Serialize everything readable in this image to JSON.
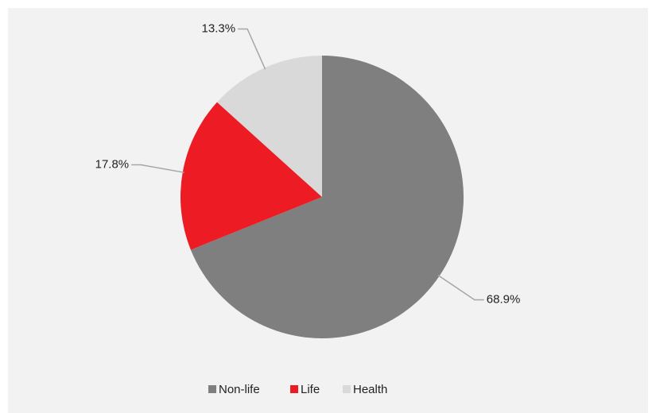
{
  "chart_data": {
    "type": "pie",
    "categories": [
      "Non-life",
      "Life",
      "Health"
    ],
    "values": [
      68.9,
      17.8,
      13.3
    ],
    "value_labels": [
      "68.9%",
      "17.8%",
      "13.3%"
    ],
    "colors": [
      "#7f7f7f",
      "#ed1c24",
      "#d9d9d9"
    ],
    "legend": "bottom"
  }
}
